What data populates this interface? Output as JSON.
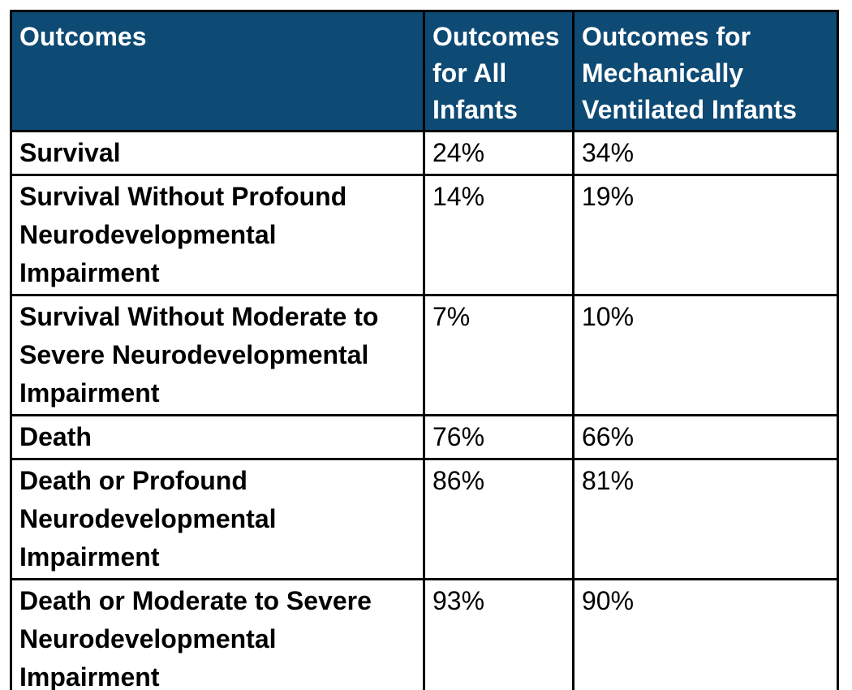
{
  "colors": {
    "page_bg": "#ffffff",
    "header_bg": "#0d4a74",
    "header_text": "#ffffff",
    "body_text": "#000000",
    "border": "#000000"
  },
  "table": {
    "columns": [
      "Outcomes",
      "Outcomes for All Infants",
      "Outcomes for Mechanically Ventilated Infants"
    ],
    "rows": [
      {
        "label": "Survival",
        "all_infants": "24%",
        "ventilated": "34%"
      },
      {
        "label": "Survival Without Profound Neurodevelopmental Impairment",
        "all_infants": "14%",
        "ventilated": "19%"
      },
      {
        "label": "Survival Without Moderate to Severe Neurodevelopmental Impairment",
        "all_infants": "7%",
        "ventilated": "10%"
      },
      {
        "label": "Death",
        "all_infants": "76%",
        "ventilated": "66%"
      },
      {
        "label": "Death or Profound Neurodevelopmental Impairment",
        "all_infants": "86%",
        "ventilated": "81%"
      },
      {
        "label": "Death or Moderate to Severe Neurodevelopmental Impairment",
        "all_infants": "93%",
        "ventilated": "90%"
      }
    ]
  },
  "chart_data": {
    "type": "table",
    "title": "",
    "categories": [
      "Survival",
      "Survival Without Profound Neurodevelopmental Impairment",
      "Survival Without Moderate to Severe Neurodevelopmental Impairment",
      "Death",
      "Death or Profound Neurodevelopmental Impairment",
      "Death or Moderate to Severe Neurodevelopmental Impairment"
    ],
    "series": [
      {
        "name": "Outcomes for All Infants",
        "unit": "%",
        "values": [
          24,
          14,
          7,
          76,
          86,
          93
        ]
      },
      {
        "name": "Outcomes for Mechanically Ventilated Infants",
        "unit": "%",
        "values": [
          34,
          19,
          10,
          66,
          81,
          90
        ]
      }
    ],
    "legend_position": "none",
    "grid": true
  }
}
